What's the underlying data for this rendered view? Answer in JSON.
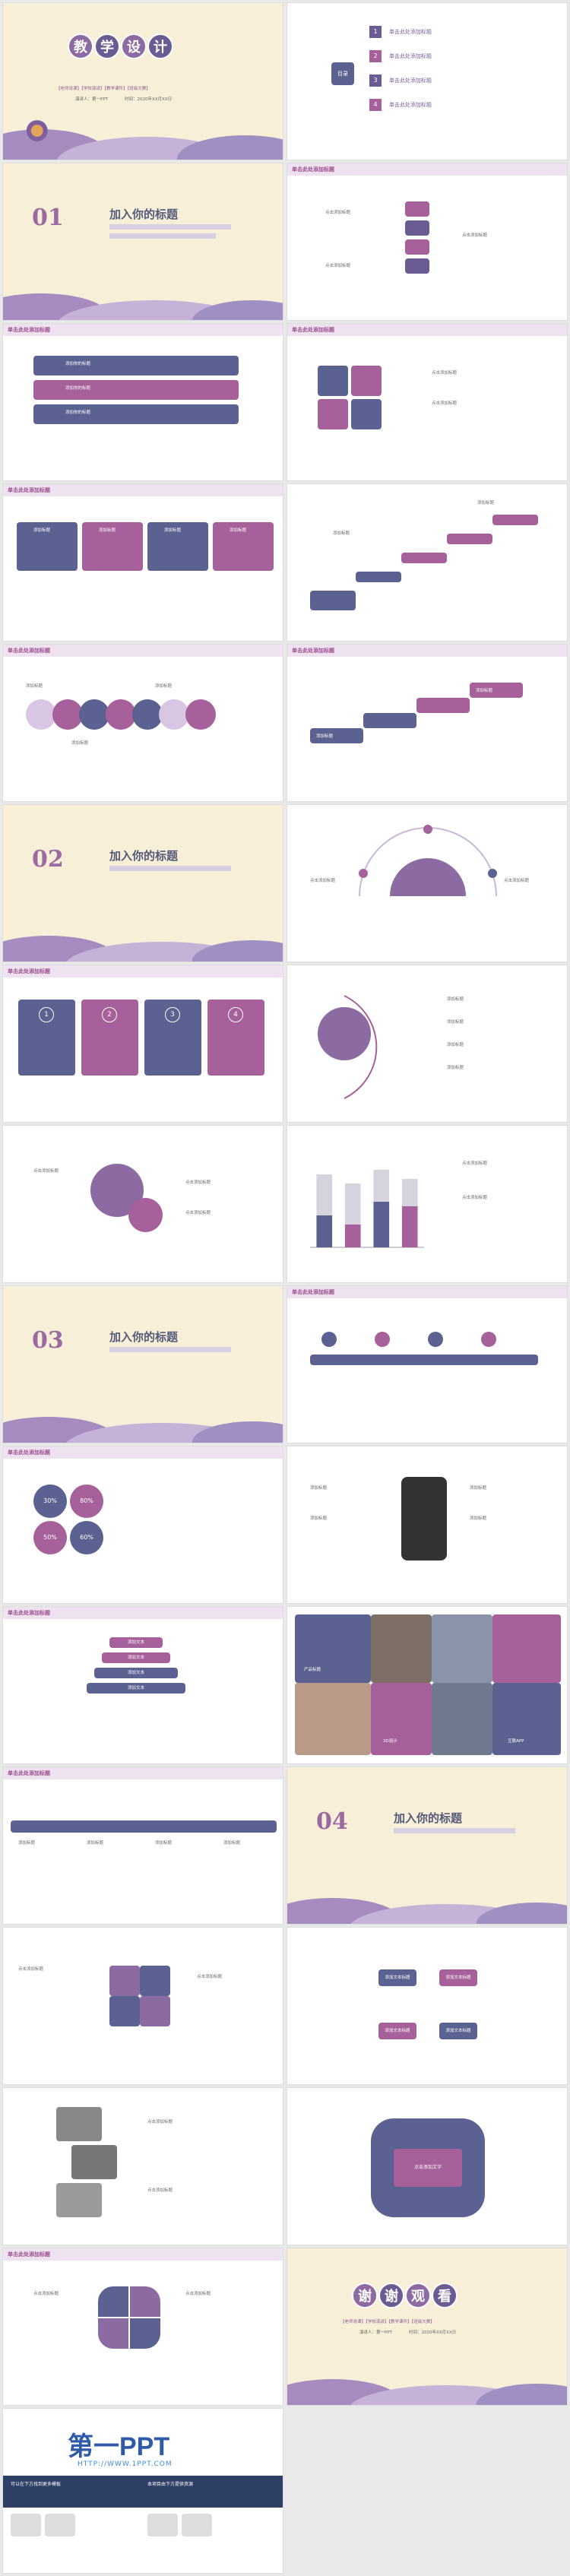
{
  "colors": {
    "purple": "#a7619a",
    "navy": "#5b6291",
    "lavender": "#b9a6c9",
    "cream": "#f8efd8"
  },
  "cover": {
    "title_chars": [
      "教",
      "学",
      "设",
      "计"
    ],
    "tags": "【老师说课】【学校演讲】【教学课件】【班级大赛】",
    "presenter": "演讲人：第一PPT",
    "date": "时间：2020年XX月XX日"
  },
  "toc": {
    "badge": "目录",
    "items": [
      {
        "num": "1",
        "label": "单击此处添加标题"
      },
      {
        "num": "2",
        "label": "单击此处添加标题"
      },
      {
        "num": "3",
        "label": "单击此处添加标题"
      },
      {
        "num": "4",
        "label": "单击此处添加标题"
      }
    ]
  },
  "header_label": "单击此处添加标题",
  "sections": [
    {
      "num": "01",
      "title": "加入你的标题"
    },
    {
      "num": "02",
      "title": "加入你的标题"
    },
    {
      "num": "03",
      "title": "加入你的标题"
    },
    {
      "num": "04",
      "title": "加入你的标题"
    }
  ],
  "labels": {
    "add_title": "添加标题",
    "click_add_title": "点击添加标题",
    "click_add_text": "点击添加文字",
    "insert_title": "添加你的标题",
    "add_text": "添加文本",
    "add_text_title": "添加文本标题",
    "product_title": "产品标题",
    "design_3d": "3D设计",
    "web_app": "互联APP",
    "pct_a": "30%",
    "pct_b": "80%",
    "pct_c": "50%",
    "pct_d": "60%"
  },
  "steps": [
    "1",
    "2",
    "3",
    "4"
  ],
  "chart_data": {
    "type": "bar",
    "categories": [
      "",
      "",
      "",
      ""
    ],
    "series": [
      {
        "values": [
          80,
          70,
          85,
          75
        ]
      },
      {
        "values": [
          35,
          25,
          50,
          45
        ]
      }
    ]
  },
  "thanks": {
    "chars": [
      "谢",
      "谢",
      "观",
      "看"
    ],
    "tags": "【老师说课】【学校演讲】【教学课件】【班级大赛】",
    "presenter": "演讲人：第一PPT",
    "date": "时间：2020年XX月XX日"
  },
  "brand": {
    "logo": "第一PPT",
    "url": "HTTP://WWW.1PPT.COM",
    "left_line": "可以在下方找到更多模板",
    "right_line": "本项目由下方提供资源"
  }
}
